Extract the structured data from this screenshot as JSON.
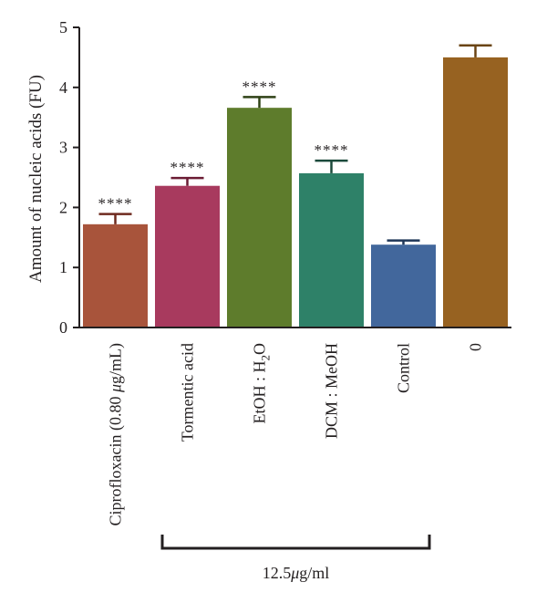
{
  "chart_data": {
    "type": "bar",
    "title": "",
    "xlabel": "",
    "ylabel": "Amount of nucleic acids (FU)",
    "ylim": [
      0,
      5
    ],
    "yticks": [
      0,
      1,
      2,
      3,
      4,
      5
    ],
    "grid": false,
    "legend": "none",
    "categories": [
      {
        "id": "cipro",
        "text": "Ciprofloxacin (0.80 ",
        "mu": "μ",
        "rest": "g/mL)"
      },
      {
        "id": "tormentic",
        "text": "Tormentic acid"
      },
      {
        "id": "etoh",
        "text": "EtOH : H",
        "sub": "2",
        "rest": "O"
      },
      {
        "id": "dcm",
        "text": "DCM : MeOH"
      },
      {
        "id": "control",
        "text": "Control"
      },
      {
        "id": "zero",
        "text": "0"
      }
    ],
    "values": [
      1.72,
      2.36,
      3.66,
      2.57,
      1.38,
      4.5
    ],
    "errors": [
      0.17,
      0.13,
      0.18,
      0.21,
      0.07,
      0.2
    ],
    "colors": [
      "#a8543b",
      "#a83a5e",
      "#5e7c2c",
      "#2e8168",
      "#42679c",
      "#976221"
    ],
    "error_colors": [
      "#6e2a1e",
      "#6b1c34",
      "#2f4216",
      "#1b4a3b",
      "#1e3657",
      "#6a4414"
    ],
    "significance": [
      "****",
      "****",
      "****",
      "****",
      "",
      ""
    ],
    "group_bracket": {
      "label_value": "12.5",
      "label_mu": "μ",
      "label_unit": "g/ml",
      "spans": [
        "tormentic",
        "control"
      ]
    }
  }
}
